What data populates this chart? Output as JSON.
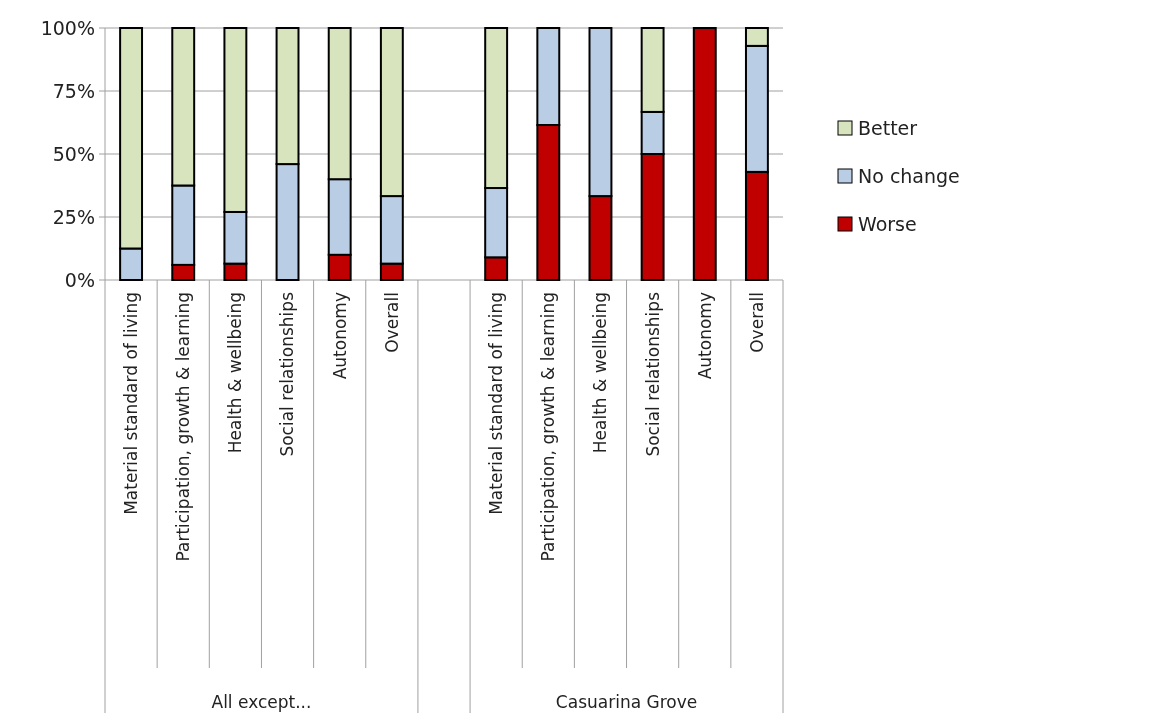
{
  "chart_data": {
    "type": "bar",
    "stacked": true,
    "categories": [
      "Material standard of living",
      "Participation, growth & learning",
      "Health & wellbeing",
      "Social relationships",
      "Autonomy",
      "Overall",
      null,
      "Material standard of living",
      "Participation, growth & learning",
      "Health & wellbeing",
      "Social relationships",
      "Autonomy",
      "Overall"
    ],
    "series": [
      {
        "name": "Worse",
        "color": "#c00000",
        "values": [
          0,
          6,
          6.5,
          0,
          10,
          6.5,
          null,
          9,
          61.5,
          33.3,
          50,
          100,
          42.9
        ]
      },
      {
        "name": "No change",
        "color": "#b9cde5",
        "values": [
          12.5,
          31.5,
          20.5,
          46,
          30,
          26.8,
          null,
          27.5,
          38.5,
          66.7,
          16.7,
          0,
          50
        ]
      },
      {
        "name": "Better",
        "color": "#d7e4bd",
        "values": [
          87.5,
          62.5,
          73,
          54,
          60,
          66.7,
          null,
          63.5,
          0,
          0,
          33.3,
          0,
          7.1
        ]
      }
    ],
    "ylim": [
      0,
      100
    ],
    "yticks": [
      {
        "value": 0,
        "label": "0%"
      },
      {
        "value": 25,
        "label": "25%"
      },
      {
        "value": 50,
        "label": "50%"
      },
      {
        "value": 75,
        "label": "75%"
      },
      {
        "value": 100,
        "label": "100%"
      }
    ],
    "grid": "y",
    "legend": "right",
    "annotations": [
      "All except...",
      "Casuarina Grove"
    ]
  }
}
